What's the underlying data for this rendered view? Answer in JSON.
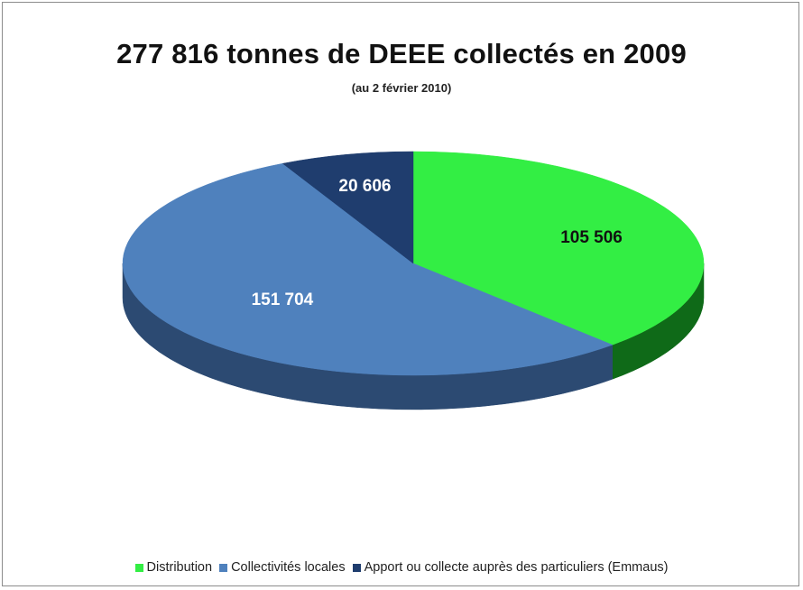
{
  "chart_data": {
    "type": "pie",
    "title": "277 816 tonnes de DEEE collectés en 2009",
    "subtitle": "(au 2 février 2010)",
    "series": [
      {
        "name": "Distribution",
        "value": 105506,
        "label": "105 506",
        "color": "#33ee44",
        "side_color": "#0f6a18",
        "label_color": "#111111"
      },
      {
        "name": "Collectivités locales",
        "value": 151704,
        "label": "151 704",
        "color": "#4f81bd",
        "side_color": "#2c4a72",
        "label_color": "#ffffff"
      },
      {
        "name": "Apport ou collecte auprès des particuliers (Emmaus)",
        "value": 20606,
        "label": "20 606",
        "color": "#1f3d6e",
        "side_color": "#132848",
        "label_color": "#ffffff"
      }
    ],
    "legend_position": "bottom"
  }
}
